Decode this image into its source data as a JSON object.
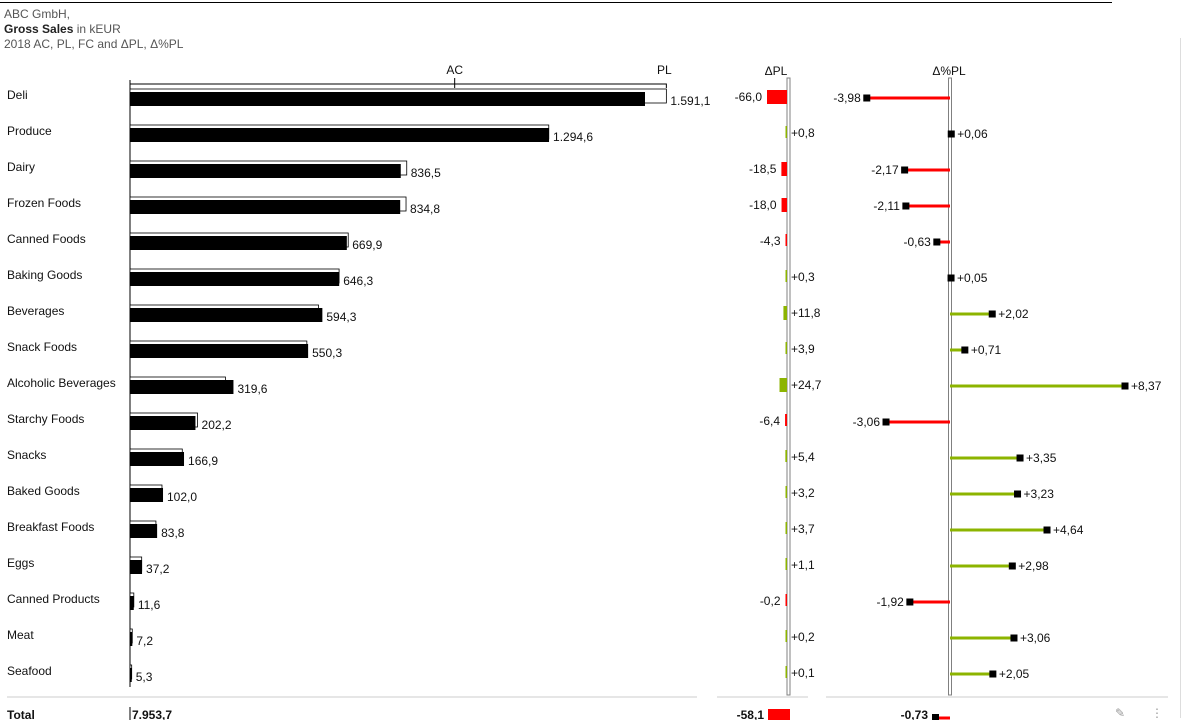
{
  "header": {
    "company": "ABC GmbH,",
    "measure": "Gross Sales",
    "unit": "in kEUR",
    "scenario": "2018 AC, PL, FC and ΔPL, Δ%PL"
  },
  "panels": {
    "ac_label": "AC",
    "pl_label": "PL",
    "dpl_title": "ΔPL",
    "dpct_title": "Δ%PL"
  },
  "colors": {
    "ac": "#000000",
    "positive": "#8cb400",
    "negative": "#ff0000",
    "axis": "#808080"
  },
  "chart_data": [
    {
      "type": "bar",
      "name": "AC vs PL",
      "categories": [
        "Deli",
        "Produce",
        "Dairy",
        "Frozen Foods",
        "Canned Foods",
        "Baking Goods",
        "Beverages",
        "Snack Foods",
        "Alcoholic Beverages",
        "Starchy Foods",
        "Snacks",
        "Baked Goods",
        "Breakfast Foods",
        "Eggs",
        "Canned Products",
        "Meat",
        "Seafood"
      ],
      "series": [
        {
          "name": "AC",
          "values": [
            1591.1,
            1294.6,
            836.5,
            834.8,
            669.9,
            646.3,
            594.3,
            550.3,
            319.6,
            202.2,
            166.9,
            102.0,
            83.8,
            37.2,
            11.6,
            7.2,
            5.3
          ]
        },
        {
          "name": "PL",
          "values": [
            1657.1,
            1293.8,
            855.0,
            852.8,
            674.2,
            646.0,
            582.5,
            546.4,
            294.9,
            208.6,
            161.5,
            98.8,
            80.1,
            36.1,
            11.8,
            7.0,
            5.2
          ]
        }
      ],
      "labels": [
        "1.591,1",
        "1.294,6",
        "836,5",
        "834,8",
        "669,9",
        "646,3",
        "594,3",
        "550,3",
        "319,6",
        "202,2",
        "166,9",
        "102,0",
        "83,8",
        "37,2",
        "11,6",
        "7,2",
        "5,3"
      ]
    },
    {
      "type": "bar",
      "name": "ΔPL",
      "categories": [
        "Deli",
        "Produce",
        "Dairy",
        "Frozen Foods",
        "Canned Foods",
        "Baking Goods",
        "Beverages",
        "Snack Foods",
        "Alcoholic Beverages",
        "Starchy Foods",
        "Snacks",
        "Baked Goods",
        "Breakfast Foods",
        "Eggs",
        "Canned Products",
        "Meat",
        "Seafood"
      ],
      "values": [
        -66.0,
        0.8,
        -18.5,
        -18.0,
        -4.3,
        0.3,
        11.8,
        3.9,
        24.7,
        -6.4,
        5.4,
        3.2,
        3.7,
        1.1,
        -0.2,
        0.2,
        0.1
      ],
      "labels": [
        "-66,0",
        "+0,8",
        "-18,5",
        "-18,0",
        "-4,3",
        "+0,3",
        "+11,8",
        "+3,9",
        "+24,7",
        "-6,4",
        "+5,4",
        "+3,2",
        "+3,7",
        "+1,1",
        "-0,2",
        "+0,2",
        "+0,1"
      ]
    },
    {
      "type": "bar",
      "name": "Δ%PL",
      "categories": [
        "Deli",
        "Produce",
        "Dairy",
        "Frozen Foods",
        "Canned Foods",
        "Baking Goods",
        "Beverages",
        "Snack Foods",
        "Alcoholic Beverages",
        "Starchy Foods",
        "Snacks",
        "Baked Goods",
        "Breakfast Foods",
        "Eggs",
        "Canned Products",
        "Meat",
        "Seafood"
      ],
      "values": [
        -3.98,
        0.06,
        -2.17,
        -2.11,
        -0.63,
        0.05,
        2.02,
        0.71,
        8.37,
        -3.06,
        3.35,
        3.23,
        4.64,
        2.98,
        -1.92,
        3.06,
        2.05
      ],
      "labels": [
        "-3,98",
        "+0,06",
        "-2,17",
        "-2,11",
        "-0,63",
        "+0,05",
        "+2,02",
        "+0,71",
        "+8,37",
        "-3,06",
        "+3,35",
        "+3,23",
        "+4,64",
        "+2,98",
        "-1,92",
        "+3,06",
        "+2,05"
      ]
    }
  ],
  "total": {
    "label": "Total",
    "ac": 7953.7,
    "ac_label": "7.953,7",
    "dpl": -58.1,
    "dpl_label": "-58,1",
    "dpct": -0.73,
    "dpct_label": "-0,73"
  }
}
